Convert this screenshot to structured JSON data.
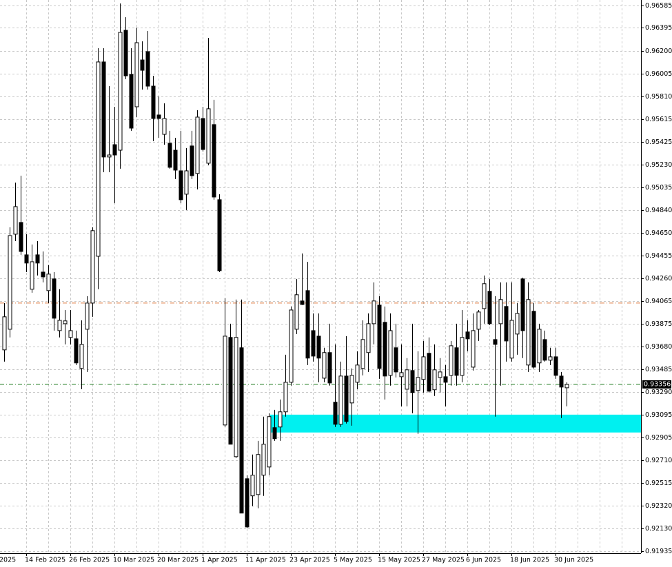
{
  "chart_data": {
    "type": "candlestick",
    "categories": [
      null,
      null,
      null,
      null,
      "14 Feb 2025",
      null,
      null,
      null,
      null,
      null,
      null,
      null,
      "26 Feb 2025",
      null,
      null,
      null,
      null,
      null,
      null,
      null,
      "10 Mar 2025",
      null,
      null,
      null,
      null,
      null,
      null,
      null,
      "20 Mar 2025",
      null,
      null,
      null,
      null,
      null,
      null,
      null,
      "1 Apr 2025",
      null,
      null,
      null,
      null,
      null,
      null,
      null,
      "11 Apr 2025",
      null,
      null,
      null,
      null,
      null,
      null,
      null,
      "23 Apr 2025",
      null,
      null,
      null,
      null,
      null,
      null,
      null,
      "5 May 2025",
      null,
      null,
      null,
      null,
      null,
      null,
      null,
      "15 May 2025",
      null,
      null,
      null,
      null,
      null,
      null,
      null,
      "27 May 2025",
      null,
      null,
      null,
      null,
      null,
      null,
      null,
      "6 Jun 2025",
      null,
      null,
      null,
      null,
      null,
      null,
      null,
      "18 Jun 2025",
      null,
      null,
      null,
      null,
      null,
      null,
      null,
      "30 Jun 2025",
      null,
      null
    ],
    "x_edge_label": "2025",
    "open": [
      0.9365,
      0.93826,
      0.94636,
      0.94736,
      0.9446,
      0.94167,
      0.9446,
      0.94313,
      0.94155,
      0.94255,
      0.93814,
      0.93873,
      0.93756,
      0.93744,
      0.93492,
      0.93826,
      0.94049,
      0.94448,
      0.96104,
      0.95294,
      0.95399,
      0.95352,
      0.96374,
      0.95998,
      0.95722,
      0.96121,
      0.96192,
      0.95898,
      0.95652,
      0.95487,
      0.95411,
      0.95352,
      0.95176,
      0.94977,
      0.95388,
      0.95153,
      0.95622,
      0.95241,
      0.9557,
      0.9493,
      0.9301,
      0.93756,
      0.9274,
      0.93668,
      0.92552,
      0.92406,
      0.92417,
      0.92582,
      0.92652,
      0.92987,
      0.92993,
      0.93122,
      0.93374,
      0.93826,
      0.94067,
      0.94155,
      0.93814,
      0.93767,
      0.93409,
      0.93627,
      0.93204,
      0.93016,
      0.93427,
      0.93198,
      0.93374,
      0.93492,
      0.93627,
      0.93873,
      0.94032,
      0.93885,
      0.93433,
      0.93668,
      0.93421,
      0.93315,
      0.93474,
      0.93304,
      0.93398,
      0.93621,
      0.9331,
      0.93415,
      0.93421,
      0.93433,
      0.93668,
      0.93433,
      0.93803,
      0.93503,
      0.93826,
      0.94002,
      0.94149,
      0.93738,
      0.93873,
      0.9402,
      0.9358,
      0.93785,
      0.94255,
      0.93521,
      0.93979,
      0.93539,
      0.93738,
      0.93562,
      0.93591,
      0.93427,
      0.93327
    ],
    "high": [
      0.94049,
      0.94695,
      0.95076,
      0.95135,
      0.94636,
      0.94548,
      0.94577,
      0.94489,
      0.94372,
      0.94313,
      0.94167,
      0.9399,
      0.9399,
      0.93814,
      0.93902,
      0.94108,
      0.94695,
      0.96221,
      0.96221,
      0.95898,
      0.95722,
      0.96603,
      0.96485,
      0.96221,
      0.96397,
      0.9628,
      0.96368,
      0.95986,
      0.9581,
      0.95751,
      0.95517,
      0.95458,
      0.95517,
      0.9537,
      0.95517,
      0.95693,
      0.95722,
      0.96309,
      0.95781,
      0.94977,
      0.9409,
      0.93873,
      0.94079,
      0.94079,
      0.92582,
      0.92758,
      0.92875,
      0.93081,
      0.9311,
      0.93139,
      0.93227,
      0.93609,
      0.9402,
      0.94255,
      0.94472,
      0.94401,
      0.93961,
      0.93961,
      0.93668,
      0.93873,
      0.93697,
      0.9355,
      0.93767,
      0.93492,
      0.93638,
      0.93902,
      0.93961,
      0.94225,
      0.94108,
      0.9402,
      0.93961,
      0.93873,
      0.93697,
      0.9358,
      0.93873,
      0.93638,
      0.93726,
      0.93756,
      0.93697,
      0.9358,
      0.93521,
      0.93726,
      0.93873,
      0.9399,
      0.93902,
      0.93961,
      0.9399,
      0.94284,
      0.94255,
      0.94108,
      0.94225,
      0.94225,
      0.94225,
      0.94049,
      0.94266,
      0.94225,
      0.94049,
      0.93873,
      0.93814,
      0.93668,
      0.93668,
      0.93462,
      0.93374
    ],
    "low": [
      0.9355,
      0.93756,
      0.94577,
      0.9446,
      0.94313,
      0.94137,
      0.94284,
      0.94225,
      0.94049,
      0.93814,
      0.93756,
      0.93697,
      0.93697,
      0.93521,
      0.93315,
      0.93462,
      0.93932,
      0.94167,
      0.95164,
      0.95164,
      0.949,
      0.95194,
      0.95957,
      0.95517,
      0.95634,
      0.95869,
      0.95869,
      0.95429,
      0.95458,
      0.95399,
      0.95194,
      0.95106,
      0.949,
      0.94842,
      0.95106,
      0.95018,
      0.95341,
      0.95223,
      0.9493,
      0.94313,
      0.92993,
      0.92846,
      0.92728,
      0.92259,
      0.9213,
      0.92318,
      0.923,
      0.92406,
      0.92582,
      0.92875,
      0.92875,
      0.93081,
      0.93345,
      0.93785,
      0.94032,
      0.93521,
      0.9355,
      0.93374,
      0.93374,
      0.93345,
      0.92993,
      0.92993,
      0.93022,
      0.93004,
      0.93315,
      0.93433,
      0.93462,
      0.93697,
      0.93403,
      0.93227,
      0.93345,
      0.93415,
      0.93169,
      0.93169,
      0.9311,
      0.92934,
      0.93286,
      0.93286,
      0.93257,
      0.93286,
      0.93169,
      0.93345,
      0.93345,
      0.93374,
      0.93638,
      0.93474,
      0.93726,
      0.93873,
      0.93861,
      0.93081,
      0.93345,
      0.9355,
      0.9355,
      0.93609,
      0.9358,
      0.93462,
      0.93492,
      0.93462,
      0.9355,
      0.93521,
      0.93403,
      0.93069,
      0.93169
    ],
    "close": [
      0.93932,
      0.94624,
      0.94871,
      0.94489,
      0.9439,
      0.94401,
      0.9439,
      0.94272,
      0.94296,
      0.9392,
      0.93902,
      0.93897,
      0.93814,
      0.93539,
      0.93697,
      0.94049,
      0.94666,
      0.96104,
      0.95294,
      0.95311,
      0.95311,
      0.96356,
      0.95986,
      0.9554,
      0.96268,
      0.96033,
      0.95898,
      0.95622,
      0.95622,
      0.95622,
      0.95206,
      0.95182,
      0.9493,
      0.95176,
      0.95135,
      0.95634,
      0.95358,
      0.95705,
      0.94953,
      0.94325,
      0.93767,
      0.92846,
      0.93756,
      0.92259,
      0.92141,
      0.92582,
      0.92758,
      0.92846,
      0.93081,
      0.92893,
      0.93122,
      0.93374,
      0.9399,
      0.9412,
      0.94037,
      0.9358,
      0.93597,
      0.9358,
      0.93627,
      0.93368,
      0.93016,
      0.93427,
      0.9304,
      0.93433,
      0.93521,
      0.93738,
      0.93873,
      0.94067,
      0.93492,
      0.93427,
      0.93814,
      0.93462,
      0.93456,
      0.9348,
      0.93286,
      0.93415,
      0.93591,
      0.93298,
      0.9348,
      0.93462,
      0.93374,
      0.93685,
      0.93433,
      0.93756,
      0.93744,
      0.93814,
      0.93973,
      0.94214,
      0.93873,
      0.93697,
      0.94079,
      0.93726,
      0.93902,
      0.93961,
      0.93814,
      0.94079,
      0.93503,
      0.93826,
      0.93562,
      0.93591,
      0.93433,
      0.93333,
      0.93356
    ],
    "bull_color": "#ffffff",
    "bear_color": "#000000",
    "current_price": 0.93356,
    "current_price_color": "#1e7b1e",
    "levels": [
      {
        "value": 0.94049,
        "color": "#e07a3c"
      }
    ],
    "zone": {
      "low": 0.92946,
      "high": 0.93098,
      "color": "#00f0f0"
    },
    "ylim": [
      0.91917,
      0.96632
    ],
    "yticks": [
      0.96585,
      0.96395,
      {
        "value": 0.962,
        "label": "0.96200"
      },
      0.96005,
      {
        "value": 0.9581,
        "label": "0.95810"
      },
      0.95615,
      0.95425,
      {
        "value": 0.9523,
        "label": "0.95230"
      },
      0.95035,
      {
        "value": 0.9484,
        "label": "0.94840"
      },
      {
        "value": 0.9465,
        "label": "0.94650"
      },
      0.94455,
      {
        "value": 0.9426,
        "label": "0.94260"
      },
      0.94065,
      0.93875,
      {
        "value": 0.9368,
        "label": "0.93680"
      },
      0.93485,
      {
        "value": 0.9329,
        "label": "0.93290"
      },
      0.93095,
      0.92905,
      {
        "value": 0.9271,
        "label": "0.92710"
      },
      0.92515,
      {
        "value": 0.9232,
        "label": "0.92320"
      },
      {
        "value": 0.9213,
        "label": "0.92130"
      },
      0.91935
    ],
    "grid": true
  }
}
